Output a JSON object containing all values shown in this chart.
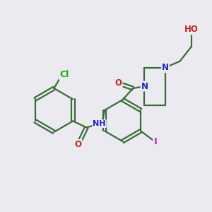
{
  "background_color": "#eaeaf0",
  "bond_color": "#3a6b3a",
  "bond_width": 1.6,
  "atom_colors": {
    "Cl": "#22aa22",
    "O": "#cc2222",
    "N": "#2222cc",
    "I": "#cc22cc",
    "H": "#555577",
    "C": "#3a6b3a"
  },
  "font_size": 8.5
}
